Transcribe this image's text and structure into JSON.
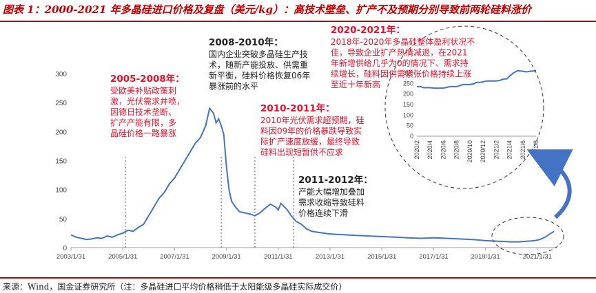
{
  "title": "图表 1：2000-2021 年多晶硅进口价格及复盘（美元/kg）：高技术壁垒、扩产不及预期分别导致前两轮硅料涨价",
  "source": "来源：Wind，国金证券研究所（注：多晶硅进口平均价格稍低于太阳能级多晶硅实际成交价）",
  "colors": {
    "line": "#4472c4",
    "red": "#e8102a",
    "text": "#222222",
    "arrow": "#4472c4",
    "title": "#c00000"
  },
  "annotations": [
    {
      "title": "2005-2008年：",
      "color": "red",
      "lines": [
        "受欧美补贴政策刺",
        "激，光伏需求井喷，",
        "因德日技术垄断、",
        "扩产产能有限，多",
        "晶硅价格一路暴涨"
      ]
    },
    {
      "title": "2008-2010年：",
      "color": "dark",
      "lines": [
        "国内企业突破多晶硅生产技",
        "术，随新产能投放、供需重",
        "新平衡，硅料价格恢复06年",
        "暴涨前的水平"
      ]
    },
    {
      "title": "2010-2011年：",
      "color": "red",
      "lines": [
        "2010年光伏需求超预期，硅",
        "料因09年的价格暴跌导致实",
        "际扩产速度放缓，最终导致",
        "硅料出现短暂供不应求"
      ]
    },
    {
      "title": "2011-2012年：",
      "color": "dark",
      "lines": [
        "产能大幅增加叠加",
        "需求收缩导致硅料",
        "价格连续下滑"
      ]
    },
    {
      "title": "2020-2021年：",
      "color": "red",
      "lines": [
        "2018年-2020年多晶硅整体盈利状况不",
        "佳，导致企业扩产热情减退，在2021",
        "年新增供给几乎为0的情况下、需求持",
        "续增长，硅料因供需紧张价格持续上涨",
        "至近十年新高"
      ]
    }
  ],
  "chart_data": [
    {
      "type": "line",
      "title": "",
      "xlabel": "",
      "ylabel": "",
      "ylim": [
        0,
        300
      ],
      "yticks": [
        0,
        50,
        100,
        150,
        200,
        250,
        300
      ],
      "xticks": [
        "2003/1/31",
        "2005/1/31",
        "2007/1/31",
        "2009/1/31",
        "2011/1/31",
        "2013/1/31",
        "2015/1/31",
        "2017/1/31",
        "2019/1/31",
        "2021/1/31"
      ],
      "xrange": [
        2003.0,
        2021.75
      ],
      "grid": false,
      "vlines_dashed": [
        2005.1,
        2008.8,
        2010.1,
        2011.6
      ],
      "series": [
        {
          "name": "",
          "x": [
            2003.0,
            2003.2,
            2003.4,
            2003.6,
            2003.8,
            2004.0,
            2004.2,
            2004.4,
            2004.6,
            2004.8,
            2005.0,
            2005.2,
            2005.4,
            2005.6,
            2005.8,
            2006.0,
            2006.2,
            2006.4,
            2006.6,
            2006.8,
            2007.0,
            2007.2,
            2007.4,
            2007.6,
            2007.8,
            2008.0,
            2008.2,
            2008.35,
            2008.5,
            2008.6,
            2008.7,
            2008.8,
            2008.9,
            2009.0,
            2009.1,
            2009.2,
            2009.35,
            2009.5,
            2009.7,
            2009.9,
            2010.1,
            2010.3,
            2010.5,
            2010.7,
            2010.9,
            2011.0,
            2011.1,
            2011.2,
            2011.35,
            2011.5,
            2011.7,
            2011.9,
            2012.1,
            2012.3,
            2012.6,
            2012.9,
            2013.2,
            2013.6,
            2014.0,
            2014.5,
            2015.0,
            2015.5,
            2016.0,
            2016.5,
            2017.0,
            2017.5,
            2018.0,
            2018.5,
            2019.0,
            2019.5,
            2020.0,
            2020.3,
            2020.6,
            2020.9,
            2021.1,
            2021.3,
            2021.5,
            2021.65
          ],
          "y": [
            22,
            18,
            16,
            14,
            15,
            17,
            16,
            20,
            18,
            22,
            25,
            30,
            28,
            35,
            40,
            55,
            70,
            85,
            95,
            110,
            120,
            135,
            150,
            165,
            180,
            190,
            210,
            240,
            232,
            215,
            222,
            210,
            195,
            140,
            100,
            80,
            70,
            62,
            60,
            58,
            55,
            60,
            68,
            75,
            70,
            65,
            76,
            72,
            65,
            55,
            45,
            40,
            32,
            28,
            26,
            24,
            23,
            22,
            21,
            20,
            19,
            18,
            17,
            16,
            17,
            16,
            15,
            14,
            12,
            11,
            10,
            10,
            11,
            12,
            14,
            18,
            24,
            28
          ]
        }
      ]
    },
    {
      "type": "line",
      "title": "",
      "ylim": [
        0,
        300
      ],
      "yticks": [
        0,
        50,
        100,
        150,
        200,
        250,
        300
      ],
      "xticks": [
        "2020/2",
        "2020/4",
        "2020/6",
        "2020/8",
        "2020/10",
        "2020/12",
        "2021/2",
        "2021/4",
        "2021/6",
        "2021/8"
      ],
      "grid": false,
      "series": [
        {
          "name": "",
          "x": [
            0,
            0.3,
            0.5,
            1,
            1.3,
            1.5,
            2,
            2.5,
            3,
            3.5,
            4,
            4.3,
            4.5,
            4.8,
            5,
            5.3,
            5.6,
            6,
            6.3,
            6.5,
            6.8,
            7,
            7.3,
            7.6,
            8,
            8.3,
            8.6,
            9
          ],
          "y": [
            235,
            235,
            230,
            230,
            228,
            228,
            228,
            235,
            235,
            245,
            245,
            248,
            255,
            255,
            258,
            262,
            262,
            262,
            265,
            270,
            272,
            285,
            300,
            310,
            308,
            305,
            308,
            310
          ]
        }
      ]
    }
  ]
}
